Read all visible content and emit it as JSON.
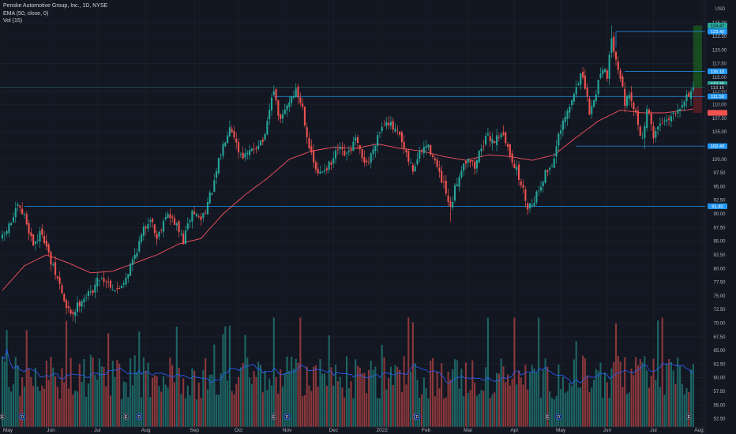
{
  "legend": {
    "title": "Penske Automotive Group, Inc., 1D, NYSE",
    "ema": "EMA (50, close, 0)",
    "vol": "Vol (15)"
  },
  "currency": "USD",
  "colors": {
    "background": "#131722",
    "up": "#26a69a",
    "down": "#ef5350",
    "ema": "#f7525f",
    "vol_ma": "#2962ff",
    "level_line": "#2196f3",
    "level_tag": "#2196f3",
    "target_zone": "#1b5e20",
    "stop_zone": "#5d1f24"
  },
  "chart_data": {
    "type": "candlestick",
    "title": "Penske Automotive Group, Inc., 1D, NYSE",
    "y_axis": {
      "range": [
        51,
        128
      ],
      "ticks": [
        52.5,
        55.0,
        57.5,
        60.0,
        62.5,
        65.0,
        67.5,
        70.0,
        72.5,
        75.0,
        77.5,
        80.0,
        82.5,
        85.0,
        87.5,
        90.0,
        92.5,
        95.0,
        97.5,
        100.0,
        102.5,
        105.0,
        107.5,
        110.0,
        112.5,
        115.0,
        117.5,
        120.0,
        122.5,
        125.0
      ]
    },
    "x_axis": {
      "labels": [
        "May",
        "Jun",
        "Jul",
        "Aug",
        "Sep",
        "Oct",
        "Nov",
        "Dec",
        "2022",
        "Feb",
        "Mar",
        "Apr",
        "May",
        "Jun",
        "Jul",
        "Aug"
      ],
      "label_day_index": [
        0,
        22,
        43,
        65,
        87,
        107,
        129,
        150,
        172,
        192,
        211,
        232,
        253,
        274,
        295,
        317
      ]
    },
    "price_anchors": [
      [
        0,
        85.5
      ],
      [
        4,
        88.5
      ],
      [
        7,
        91.2
      ],
      [
        10,
        89.5
      ],
      [
        14,
        84.5
      ],
      [
        18,
        86.8
      ],
      [
        22,
        81.0
      ],
      [
        26,
        77.0
      ],
      [
        29,
        72.5
      ],
      [
        32,
        71.8
      ],
      [
        36,
        74.5
      ],
      [
        40,
        75.5
      ],
      [
        44,
        78.5
      ],
      [
        48,
        77.5
      ],
      [
        52,
        75.8
      ],
      [
        56,
        78.5
      ],
      [
        60,
        82.5
      ],
      [
        64,
        87.0
      ],
      [
        67,
        89.5
      ],
      [
        70,
        85.5
      ],
      [
        74,
        90.0
      ],
      [
        78,
        88.5
      ],
      [
        82,
        85.0
      ],
      [
        86,
        90.5
      ],
      [
        90,
        89.0
      ],
      [
        93,
        92.0
      ],
      [
        96,
        95.5
      ],
      [
        98,
        99.5
      ],
      [
        100,
        102.5
      ],
      [
        103,
        106.5
      ],
      [
        105,
        104.5
      ],
      [
        107,
        101.5
      ],
      [
        110,
        100.5
      ],
      [
        113,
        101.5
      ],
      [
        116,
        103.0
      ],
      [
        119,
        103.8
      ],
      [
        121,
        109.0
      ],
      [
        123,
        113.0
      ],
      [
        124,
        110.0
      ],
      [
        126,
        106.8
      ],
      [
        128,
        109.0
      ],
      [
        131,
        111.5
      ],
      [
        133,
        112.5
      ],
      [
        136,
        109.5
      ],
      [
        138,
        104.5
      ],
      [
        140,
        100.5
      ],
      [
        143,
        97.0
      ],
      [
        146,
        98.5
      ],
      [
        149,
        99.0
      ],
      [
        152,
        101.8
      ],
      [
        156,
        100.5
      ],
      [
        160,
        103.5
      ],
      [
        163,
        100.0
      ],
      [
        166,
        99.5
      ],
      [
        170,
        104.5
      ],
      [
        174,
        107.5
      ],
      [
        177,
        105.5
      ],
      [
        180,
        104.0
      ],
      [
        183,
        100.5
      ],
      [
        186,
        98.0
      ],
      [
        189,
        101.0
      ],
      [
        192,
        102.5
      ],
      [
        195,
        101.0
      ],
      [
        198,
        97.0
      ],
      [
        200,
        95.0
      ],
      [
        203,
        90.5
      ],
      [
        205,
        94.5
      ],
      [
        208,
        98.5
      ],
      [
        211,
        100.5
      ],
      [
        214,
        98.5
      ],
      [
        217,
        102.5
      ],
      [
        220,
        104.0
      ],
      [
        223,
        103.5
      ],
      [
        226,
        105.0
      ],
      [
        229,
        102.0
      ],
      [
        232,
        99.0
      ],
      [
        235,
        95.5
      ],
      [
        238,
        91.5
      ],
      [
        240,
        92.0
      ],
      [
        243,
        94.5
      ],
      [
        246,
        97.5
      ],
      [
        249,
        99.0
      ],
      [
        252,
        104.0
      ],
      [
        255,
        107.5
      ],
      [
        258,
        110.5
      ],
      [
        260,
        113.5
      ],
      [
        262,
        115.5
      ],
      [
        264,
        113.0
      ],
      [
        266,
        108.5
      ],
      [
        268,
        110.5
      ],
      [
        270,
        114.5
      ],
      [
        272,
        117.0
      ],
      [
        274,
        115.5
      ],
      [
        276,
        121.5
      ],
      [
        278,
        119.0
      ],
      [
        280,
        115.0
      ],
      [
        282,
        110.5
      ],
      [
        284,
        111.0
      ],
      [
        286,
        109.5
      ],
      [
        288,
        106.5
      ],
      [
        290,
        103.5
      ],
      [
        292,
        109.5
      ],
      [
        295,
        104.5
      ],
      [
        298,
        106.5
      ],
      [
        301,
        107.5
      ],
      [
        304,
        108.5
      ],
      [
        307,
        110.0
      ],
      [
        310,
        111.5
      ],
      [
        313,
        113.15
      ]
    ],
    "ema_anchors": [
      [
        0,
        76.0
      ],
      [
        10,
        80.5
      ],
      [
        20,
        82.5
      ],
      [
        30,
        81.0
      ],
      [
        40,
        79.2
      ],
      [
        50,
        79.5
      ],
      [
        60,
        81.0
      ],
      [
        70,
        82.5
      ],
      [
        80,
        84.5
      ],
      [
        90,
        85.5
      ],
      [
        100,
        90.0
      ],
      [
        110,
        93.5
      ],
      [
        120,
        96.5
      ],
      [
        130,
        100.0
      ],
      [
        140,
        101.5
      ],
      [
        150,
        102.2
      ],
      [
        160,
        102.0
      ],
      [
        170,
        102.8
      ],
      [
        180,
        102.0
      ],
      [
        190,
        101.5
      ],
      [
        200,
        100.5
      ],
      [
        210,
        99.8
      ],
      [
        220,
        100.8
      ],
      [
        230,
        100.5
      ],
      [
        240,
        99.8
      ],
      [
        250,
        100.8
      ],
      [
        260,
        104.0
      ],
      [
        270,
        107.0
      ],
      [
        280,
        109.0
      ],
      [
        290,
        108.5
      ],
      [
        300,
        108.5
      ],
      [
        313,
        109.2
      ]
    ],
    "levels": [
      {
        "value": 91.4,
        "label": "91.40",
        "kind": "support",
        "from_day": 10
      },
      {
        "value": 102.4,
        "label": "102.40",
        "kind": "support",
        "from_day": 260
      },
      {
        "value": 111.5,
        "label": "111.50",
        "kind": "resistance",
        "from_day": 123
      },
      {
        "value": 116.1,
        "label": "116.10",
        "kind": "resistance",
        "from_day": 282
      },
      {
        "value": 123.4,
        "label": "123.40",
        "kind": "resistance",
        "from_day": 278
      }
    ],
    "position": {
      "entry": 113.15,
      "target": 124.47,
      "stop": 108.5,
      "from_day": 313
    },
    "price_tags": [
      {
        "value": 124.47,
        "label": "124.47",
        "color": "#26a69a",
        "text_color": "#131722"
      },
      {
        "value": 123.4,
        "label": "123.40",
        "color": "#2196f3",
        "text_color": "#ffffff"
      },
      {
        "value": 116.1,
        "label": "116.10",
        "color": "#2196f3",
        "text_color": "#ffffff"
      },
      {
        "value": 113.75,
        "label": "113.75",
        "color": "#26a69a",
        "text_color": "#ffffff"
      },
      {
        "value": 113.15,
        "label": "113.15",
        "color": "#131722",
        "text_color": "#d1d4dc"
      },
      {
        "value": 111.5,
        "label": "111.50",
        "color": "#2196f3",
        "text_color": "#ffffff"
      },
      {
        "value": 108.5,
        "label": "",
        "color": "#ef5350",
        "text_color": "#ffffff"
      },
      {
        "value": 102.4,
        "label": "102.40",
        "color": "#2196f3",
        "text_color": "#ffffff"
      },
      {
        "value": 91.4,
        "label": "91.40",
        "color": "#2196f3",
        "text_color": "#ffffff"
      }
    ],
    "events": [
      {
        "day": 0,
        "label": "E",
        "kind": "earnings"
      },
      {
        "day": 9,
        "label": "D",
        "kind": "dividend"
      },
      {
        "day": 56,
        "label": "E",
        "kind": "earnings"
      },
      {
        "day": 62,
        "label": "D",
        "kind": "dividend"
      },
      {
        "day": 123,
        "label": "E",
        "kind": "earnings"
      },
      {
        "day": 129,
        "label": "D",
        "kind": "dividend"
      },
      {
        "day": 187,
        "label": "E",
        "kind": "earnings"
      },
      {
        "day": 188,
        "label": "D",
        "kind": "dividend"
      },
      {
        "day": 247,
        "label": "E",
        "kind": "earnings"
      },
      {
        "day": 252,
        "label": "D",
        "kind": "dividend"
      },
      {
        "day": 311,
        "label": "E",
        "kind": "earnings"
      }
    ],
    "volume": {
      "bottom_value": 51,
      "top_value": 71
    }
  }
}
